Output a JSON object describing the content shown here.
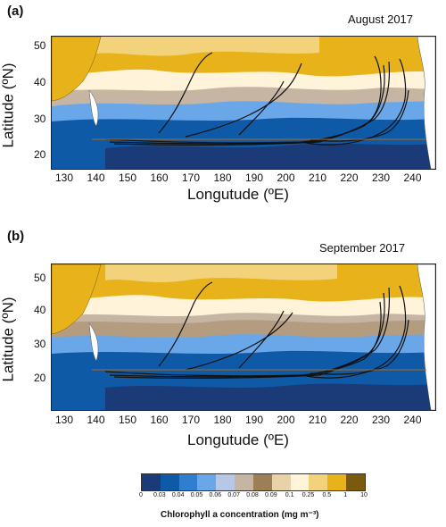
{
  "panels": [
    {
      "letter": "(a)",
      "date": "August 2017"
    },
    {
      "letter": "(b)",
      "date": "September 2017"
    }
  ],
  "axes": {
    "xlabel": "Longutude (ºE)",
    "ylabel": "Latitude (ºN)",
    "x_ticks": [
      "130",
      "140",
      "150",
      "160",
      "170",
      "180",
      "190",
      "200",
      "210",
      "220",
      "230",
      "240"
    ],
    "y_ticks": [
      "50",
      "40",
      "30",
      "20"
    ]
  },
  "colorbar": {
    "title": "Chlorophyll a concentration (mg m⁻³)",
    "ticks": [
      "0",
      "0.03",
      "0.04",
      "0.05",
      "0.06",
      "0.07",
      "0.08",
      "0.09",
      "0.1",
      "0.25",
      "0.5",
      "1",
      "10"
    ],
    "colors": [
      "#1b3a78",
      "#0e5aa7",
      "#2f7fd1",
      "#6aa7e9",
      "#b7c8e6",
      "#c5b5a2",
      "#9d7f55",
      "#e8d2a8",
      "#fff3d9",
      "#f2d27a",
      "#e8b21b",
      "#7a5a0e"
    ]
  },
  "icons": {
    "land": "land-mass-shape",
    "trajectory": "trajectory-line"
  }
}
